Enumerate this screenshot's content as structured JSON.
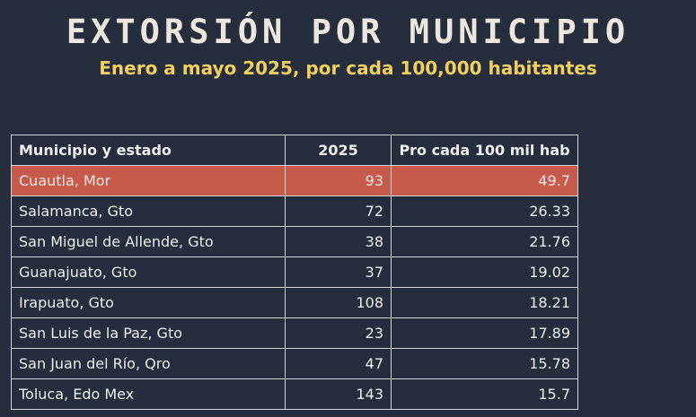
{
  "title": "EXTORSIÓN POR MUNICIPIO",
  "subtitle": "Enero a mayo 2025, por cada 100,000 habitantes",
  "colors": {
    "background": "#262e3d",
    "title": "#ece6dc",
    "subtitle": "#f2cf5e",
    "highlight_row": "#c65a4b",
    "grid": "#d4d4d4"
  },
  "table": {
    "headers": [
      "Municipio y estado",
      "2025",
      "Pro cada 100 mil hab"
    ],
    "rows": [
      {
        "municipio": "Cuautla, Mor",
        "y2025": "93",
        "tasa": "49.7",
        "highlight": true
      },
      {
        "municipio": "Salamanca, Gto",
        "y2025": "72",
        "tasa": "26.33"
      },
      {
        "municipio": "San Miguel de Allende, Gto",
        "y2025": "38",
        "tasa": "21.76"
      },
      {
        "municipio": "Guanajuato, Gto",
        "y2025": "37",
        "tasa": "19.02"
      },
      {
        "municipio": "Irapuato, Gto",
        "y2025": "108",
        "tasa": "18.21"
      },
      {
        "municipio": "San Luis de la Paz, Gto",
        "y2025": "23",
        "tasa": "17.89"
      },
      {
        "municipio": "San Juan del Río, Qro",
        "y2025": "47",
        "tasa": "15.78"
      },
      {
        "municipio": "Toluca, Edo Mex",
        "y2025": "143",
        "tasa": "15.7"
      }
    ]
  }
}
